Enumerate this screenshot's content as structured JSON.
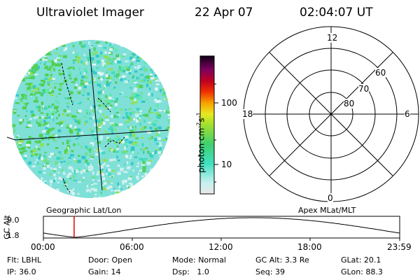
{
  "header": {
    "instrument": "Ultraviolet Imager",
    "date": "22 Apr 07",
    "time": "02:04:07 UT"
  },
  "colorbar": {
    "unit_label": "photon cm",
    "unit_sup1": "-2",
    "unit_mid": "s",
    "unit_sup2": "-1",
    "ticks": [
      "100",
      "10"
    ]
  },
  "polar_plot": {
    "mlt_labels": [
      "12",
      "18",
      "6",
      "0"
    ],
    "lat_labels": [
      "60",
      "70",
      "80"
    ]
  },
  "footer_labels": {
    "left": "Geographic Lat/Lon",
    "right": "Apex MLat/MLT"
  },
  "orbit_plot": {
    "ylabel": "GC Alt",
    "yticks": [
      "9.0",
      "1.8"
    ],
    "xticks": [
      "00:00",
      "06:00",
      "12:00",
      "18:00",
      "23:59"
    ],
    "marker_time_hours": 2.07
  },
  "status": {
    "flt_label": "Flt:",
    "flt_value": "LBHL",
    "ip_label": "IP:",
    "ip_value": "36.0",
    "door_label": "Door:",
    "door_value": "Open",
    "gain_label": "Gain:",
    "gain_value": "14",
    "mode_label": "Mode:",
    "mode_value": "Normal",
    "dsp_label": "Dsp:",
    "dsp_value": "1.0",
    "gcalt_label": "GC Alt:",
    "gcalt_value": "3.3 Re",
    "seq_label": "Seq:",
    "seq_value": "39",
    "glat_label": "GLat:",
    "glat_value": "20.1",
    "glon_label": "GLon:",
    "glon_value": "88.3"
  },
  "colors": {
    "marker": "#e00000",
    "disk_base": "#7fe0d8"
  }
}
